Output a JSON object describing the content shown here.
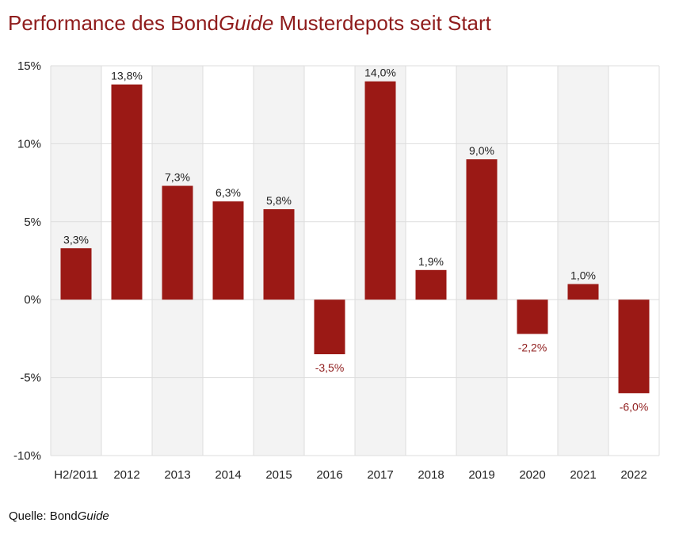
{
  "title": {
    "prefix": "Performance des Bond",
    "italic": "Guide",
    "suffix": " Musterdepots seit Start"
  },
  "source": {
    "prefix": "Quelle: Bond",
    "italic": "Guide"
  },
  "colors": {
    "bar": "#9b1915",
    "title": "#8f1c1c",
    "negative_label": "#8f1c1c",
    "positive_label": "#222222",
    "band": "#f3f3f3",
    "grid": "#dddddd"
  },
  "chart_data": {
    "type": "bar",
    "categories": [
      "H2/2011",
      "2012",
      "2013",
      "2014",
      "2015",
      "2016",
      "2017",
      "2018",
      "2019",
      "2020",
      "2021",
      "2022"
    ],
    "values": [
      3.3,
      13.8,
      7.3,
      6.3,
      5.8,
      -3.5,
      14.0,
      1.9,
      9.0,
      -2.2,
      1.0,
      -6.0
    ],
    "data_labels": [
      "3,3%",
      "13,8%",
      "7,3%",
      "6,3%",
      "5,8%",
      "-3,5%",
      "14,0%",
      "1,9%",
      "9,0%",
      "-2,2%",
      "1,0%",
      "-6,0%"
    ],
    "ylim": [
      -10,
      15
    ],
    "yticks": [
      15,
      10,
      5,
      0,
      -5,
      -10
    ],
    "ytick_labels": [
      "15%",
      "10%",
      "5%",
      "0%",
      "-5%",
      "-10%"
    ],
    "grid": true,
    "alternating_bands": true
  }
}
